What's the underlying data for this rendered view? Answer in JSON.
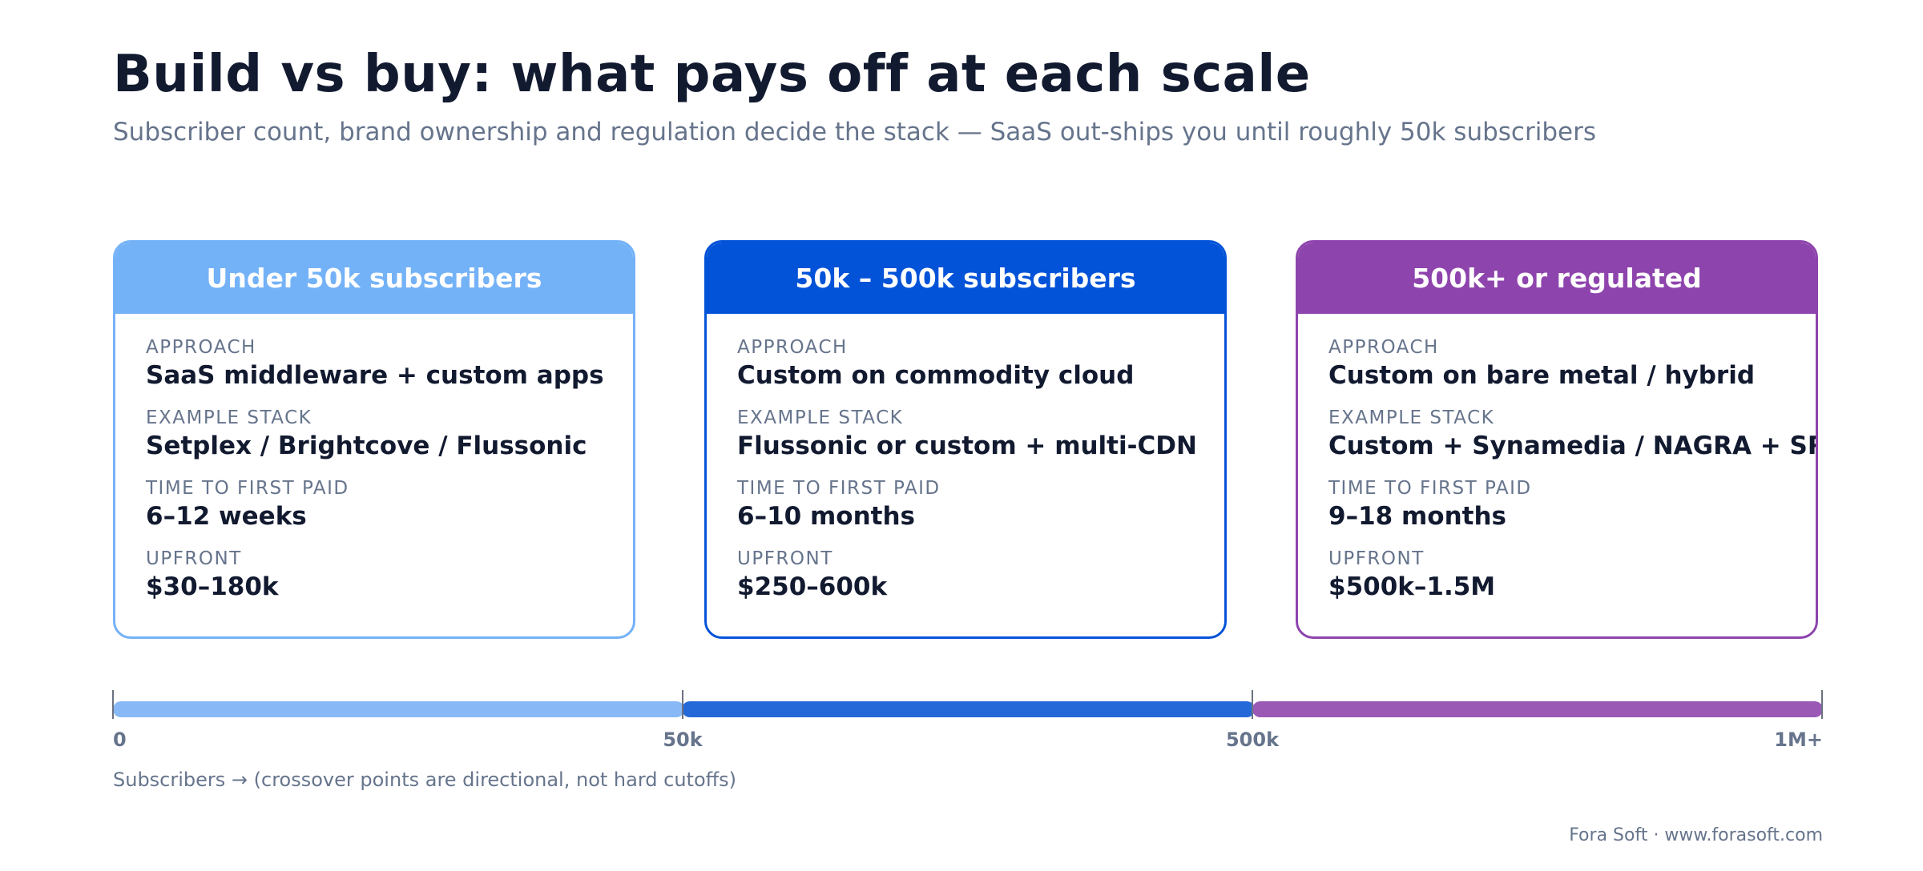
{
  "header": {
    "title": "Build vs buy: what pays off at each scale",
    "subtitle": "Subscriber count, brand ownership and regulation decide the stack — SaaS out-ships you until roughly 50k subscribers"
  },
  "labels": {
    "approach": "APPROACH",
    "stack": "EXAMPLE STACK",
    "time": "TIME TO FIRST PAID",
    "upfront": "UPFRONT"
  },
  "cards": [
    {
      "title": "Under 50k subscribers",
      "color": "#74b2f8",
      "approach": "SaaS middleware + custom apps",
      "stack": "Setplex / Brightcove / Flussonic",
      "time": "6–12 weeks",
      "upfront": "$30–180k"
    },
    {
      "title": "50k – 500k subscribers",
      "color": "#0353d8",
      "approach": "Custom on commodity cloud",
      "stack": "Flussonic or custom + multi-CDN",
      "time": "6–10 months",
      "upfront": "$250–600k"
    },
    {
      "title": "500k+ or regulated",
      "color": "#8e44ad",
      "approach": "Custom on bare metal / hybrid",
      "stack": "Custom + Synamedia / NAGRA + SRE",
      "time": "9–18 months",
      "upfront": "$500k–1.5M"
    }
  ],
  "scale": {
    "ticks": [
      "0",
      "50k",
      "500k",
      "1M+"
    ],
    "segment_colors": [
      "#88b8f6",
      "#2569d8",
      "#9b59b6"
    ],
    "note": "Subscribers → (crossover points are directional, not hard cutoffs)"
  },
  "footer": {
    "credit": "Fora Soft · www.forasoft.com"
  }
}
